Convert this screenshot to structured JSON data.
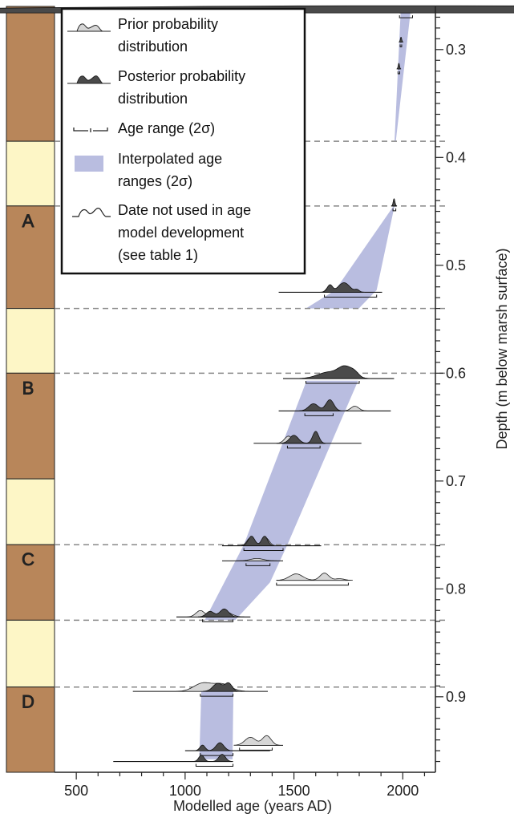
{
  "chart_data": {
    "type": "age-depth model",
    "xlabel": "Modelled age (years AD)",
    "ylabel": "Depth (m below marsh surface)",
    "xlim": [
      400,
      2150
    ],
    "ylim": [
      0.26,
      0.97
    ],
    "x_ticks": [
      500,
      1000,
      1500,
      2000
    ],
    "y_ticks": [
      0.3,
      0.4,
      0.5,
      0.6,
      0.7,
      0.8,
      0.9
    ],
    "colors": {
      "band": "#b9bde0",
      "mud": "#b8865a",
      "peat": "#fdf6c6",
      "prior": "#d6d6d6",
      "posterior": "#4a4a4a",
      "reference_line": "#888888"
    },
    "legend": {
      "placement": "top-left",
      "items": [
        {
          "label": "Prior probability distribution",
          "icon": "prior-distribution-icon"
        },
        {
          "label": "Posterior probability distribution",
          "icon": "posterior-distribution-icon"
        },
        {
          "label": "Age range (2σ)",
          "icon": "age-range-icon"
        },
        {
          "label": "Interpolated age ranges (2σ)",
          "icon": "interpolated-band-icon"
        },
        {
          "label": "Date not used in age model development (see table 1)",
          "icon": "unused-date-icon"
        }
      ]
    },
    "units": [
      {
        "label": "",
        "type": "mud",
        "top": 0.26,
        "bottom": 0.385
      },
      {
        "label": "",
        "type": "peat",
        "top": 0.385,
        "bottom": 0.445
      },
      {
        "label": "A",
        "type": "mud",
        "top": 0.445,
        "bottom": 0.54
      },
      {
        "label": "",
        "type": "peat",
        "top": 0.54,
        "bottom": 0.6
      },
      {
        "label": "B",
        "type": "mud",
        "top": 0.6,
        "bottom": 0.698
      },
      {
        "label": "",
        "type": "peat",
        "top": 0.698,
        "bottom": 0.759
      },
      {
        "label": "C",
        "type": "mud",
        "top": 0.759,
        "bottom": 0.829
      },
      {
        "label": "",
        "type": "peat",
        "top": 0.829,
        "bottom": 0.891
      },
      {
        "label": "D",
        "type": "mud",
        "top": 0.891,
        "bottom": 0.97
      }
    ],
    "contact_depths": [
      0.385,
      0.445,
      0.54,
      0.6,
      0.759,
      0.829,
      0.891
    ],
    "age_band_segments": [
      [
        [
          1990,
          0.266
        ],
        [
          2035,
          0.266
        ],
        [
          1968,
          0.385
        ],
        [
          1962,
          0.385
        ]
      ],
      [
        [
          1958,
          0.445
        ],
        [
          1962,
          0.445
        ],
        [
          1880,
          0.523
        ],
        [
          1798,
          0.54
        ],
        [
          1555,
          0.54
        ],
        [
          1690,
          0.523
        ]
      ],
      [
        [
          1558,
          0.607
        ],
        [
          1795,
          0.607
        ],
        [
          1470,
          0.759
        ],
        [
          1390,
          0.794
        ],
        [
          1230,
          0.829
        ],
        [
          1090,
          0.829
        ],
        [
          1270,
          0.759
        ]
      ],
      [
        [
          1075,
          0.891
        ],
        [
          1222,
          0.891
        ],
        [
          1218,
          0.958
        ],
        [
          1065,
          0.958
        ]
      ]
    ],
    "dates": [
      {
        "depth": 0.266,
        "range": [
          1985,
          2045
        ],
        "line": [
          1985,
          2045
        ],
        "posterior": [
          [
            2010,
            2020,
            9
          ]
        ]
      },
      {
        "depth": 0.293,
        "range": [
          1988,
          1995
        ],
        "line": [
          1988,
          1995
        ],
        "posterior": [
          [
            1992,
            3,
            6
          ]
        ]
      },
      {
        "depth": 0.318,
        "range": [
          1978,
          1986
        ],
        "line": [
          1978,
          1986
        ],
        "posterior": [
          [
            1982,
            3,
            7
          ]
        ]
      },
      {
        "depth": 0.445,
        "range": [
          1955,
          1968
        ],
        "line": [
          1953,
          1970
        ],
        "posterior": [
          [
            1960,
            4,
            9
          ]
        ]
      },
      {
        "depth": 0.525,
        "range": [
          1640,
          1880
        ],
        "line": [
          1430,
          1905
        ],
        "prior": [
          [
            1665,
            14,
            8
          ],
          [
            1735,
            30,
            7
          ]
        ],
        "posterior": [
          [
            1665,
            12,
            9
          ],
          [
            1730,
            26,
            12
          ],
          [
            1790,
            10,
            3
          ]
        ]
      },
      {
        "depth": 0.605,
        "range": [
          1555,
          1800
        ],
        "line": [
          1450,
          1960
        ],
        "prior": [
          [
            1700,
            50,
            8
          ],
          [
            1760,
            30,
            5
          ]
        ],
        "posterior": [
          [
            1660,
            50,
            8
          ],
          [
            1735,
            30,
            13
          ],
          [
            1780,
            20,
            6
          ]
        ]
      },
      {
        "depth": 0.635,
        "range": [
          1550,
          1680
        ],
        "line": [
          1430,
          1945
        ],
        "prior": [
          [
            1590,
            20,
            6
          ],
          [
            1780,
            18,
            6
          ]
        ],
        "posterior": [
          [
            1590,
            22,
            9
          ],
          [
            1665,
            18,
            14
          ]
        ]
      },
      {
        "depth": 0.665,
        "range": [
          1470,
          1620
        ],
        "line": [
          1315,
          1810
        ],
        "prior": [
          [
            1475,
            18,
            9
          ],
          [
            1600,
            15,
            6
          ]
        ],
        "posterior": [
          [
            1500,
            20,
            10
          ],
          [
            1600,
            14,
            15
          ]
        ]
      },
      {
        "depth": 0.76,
        "range": [
          1270,
          1450
        ],
        "line": [
          1170,
          1625
        ],
        "prior": [
          [
            1300,
            16,
            10
          ],
          [
            1370,
            16,
            10
          ]
        ],
        "posterior": [
          [
            1305,
            15,
            12
          ],
          [
            1365,
            14,
            12
          ]
        ]
      },
      {
        "depth": 0.774,
        "range": [
          1280,
          1390
        ],
        "line": [
          1170,
          1450
        ],
        "prior": [
          [
            1330,
            30,
            3
          ]
        ]
      },
      {
        "depth": 0.792,
        "range": [
          1420,
          1750
        ],
        "line": [
          1420,
          1750
        ],
        "prior": [
          [
            1510,
            30,
            8
          ],
          [
            1640,
            20,
            9
          ],
          [
            1710,
            20,
            2
          ]
        ]
      },
      {
        "depth": 0.826,
        "range": [
          1080,
          1220
        ],
        "line": [
          960,
          1300
        ],
        "prior": [
          [
            1070,
            20,
            8
          ],
          [
            1180,
            30,
            7
          ]
        ],
        "posterior": [
          [
            1115,
            18,
            7
          ],
          [
            1180,
            20,
            10
          ]
        ]
      },
      {
        "depth": 0.895,
        "range": [
          1070,
          1220
        ],
        "line": [
          760,
          1380
        ],
        "prior": [
          [
            1080,
            40,
            10
          ],
          [
            1170,
            40,
            9
          ]
        ],
        "posterior": [
          [
            1150,
            22,
            10
          ],
          [
            1200,
            16,
            10
          ]
        ]
      },
      {
        "depth": 0.945,
        "range": [
          1250,
          1400
        ],
        "line": [
          1250,
          1450
        ],
        "prior": [
          [
            1300,
            25,
            10
          ],
          [
            1375,
            20,
            12
          ]
        ]
      },
      {
        "depth": 0.95,
        "range": [
          1070,
          1220
        ],
        "line": [
          1000,
          1390
        ],
        "posterior": [
          [
            1080,
            12,
            7
          ],
          [
            1160,
            18,
            10
          ]
        ]
      },
      {
        "depth": 0.96,
        "range": [
          1050,
          1220
        ],
        "line": [
          670,
          1220
        ],
        "posterior": [
          [
            1075,
            12,
            8
          ],
          [
            1170,
            15,
            9
          ]
        ]
      }
    ]
  }
}
